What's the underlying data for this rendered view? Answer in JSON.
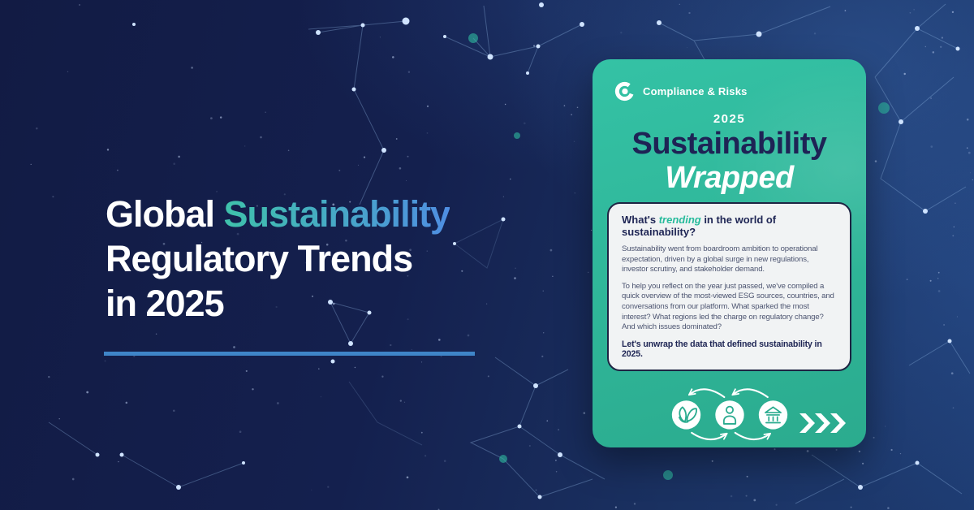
{
  "colors": {
    "background_left": "#131c45",
    "background_right": "#1e3c72",
    "accent_gradient_start": "#3fc2ab",
    "accent_gradient_end": "#4f8ee2",
    "divider_blue": "#3f85c8",
    "card_teal": "#2fb89b",
    "navy_text": "#1e2355",
    "panel_background": "#f1f3f4",
    "highlight_teal": "#27bb9c"
  },
  "hero": {
    "line1_white": "Global ",
    "line1_accent": "Sustainability",
    "line2": "Regulatory Trends",
    "line3": "in 2025"
  },
  "card": {
    "brand": "Compliance & Risks",
    "year": "2025",
    "title": "Sustainability",
    "subtitle": "Wrapped",
    "panel": {
      "heading_prefix": "What's ",
      "heading_highlight": "trending",
      "heading_suffix": " in the world of sustainability?",
      "paragraph1": "Sustainability went from boardroom ambition to operational expectation, driven by a global surge in new regulations, investor scrutiny, and stakeholder demand.",
      "paragraph2": "To help you reflect on the year just passed, we've compiled a quick overview of the most-viewed ESG sources, countries, and conversations from our platform. What sparked the most interest? What regions led the charge on regulatory change? And which issues dominated?",
      "closing": "Let's unwrap the data that defined sustainability in 2025."
    },
    "icons": [
      "leaf-icon",
      "person-icon",
      "bank-icon"
    ]
  }
}
